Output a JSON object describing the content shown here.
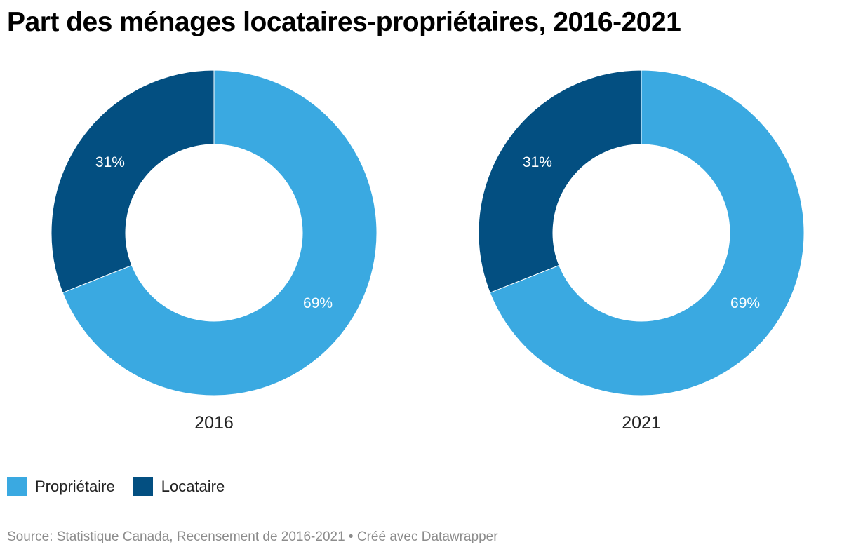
{
  "title": "Part des ménages locataires-propriétaires, 2016-2021",
  "legend": {
    "items": [
      {
        "label": "Propriétaire",
        "color": "#3aa9e1"
      },
      {
        "label": "Locataire",
        "color": "#034f81"
      }
    ]
  },
  "footer": {
    "source": "Source: Statistique Canada, Recensement de 2016-2021",
    "separator": " • ",
    "credit": "Créé avec Datawrapper"
  },
  "chart_data": [
    {
      "type": "pie",
      "donut": true,
      "title": "2016",
      "categories": [
        "Propriétaire",
        "Locataire"
      ],
      "values": [
        69,
        31
      ],
      "value_labels": [
        "69%",
        "31%"
      ],
      "colors": [
        "#3aa9e1",
        "#034f81"
      ]
    },
    {
      "type": "pie",
      "donut": true,
      "title": "2021",
      "categories": [
        "Propriétaire",
        "Locataire"
      ],
      "values": [
        69,
        31
      ],
      "value_labels": [
        "69%",
        "31%"
      ],
      "colors": [
        "#3aa9e1",
        "#034f81"
      ]
    }
  ]
}
